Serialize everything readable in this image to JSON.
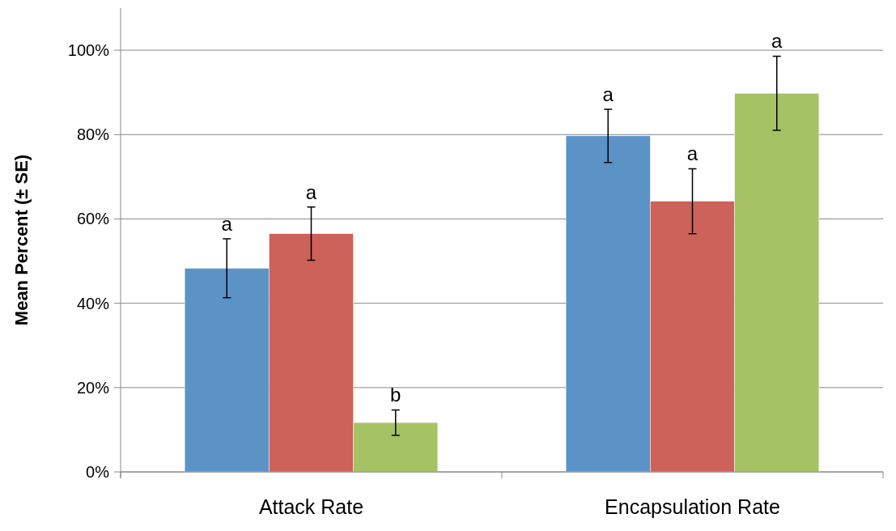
{
  "chart_data": {
    "type": "bar",
    "ylabel": "Mean Percent (± SE)",
    "categories": [
      "Attack Rate",
      "Encapsulation Rate"
    ],
    "series": [
      {
        "color": "#5b93c7",
        "values": [
          48.3,
          79.7
        ],
        "errors": [
          7,
          6.3
        ]
      },
      {
        "color": "#cc625a",
        "values": [
          56.5,
          64.2
        ],
        "errors": [
          6.3,
          7.7
        ]
      },
      {
        "color": "#a5c264",
        "values": [
          11.7,
          89.8
        ],
        "errors": [
          3,
          8.8
        ]
      }
    ],
    "ylim": [
      0,
      110
    ],
    "yticks": [
      {
        "value": 0,
        "label": "0%"
      },
      {
        "value": 20,
        "label": "20%"
      },
      {
        "value": 40,
        "label": "40%"
      },
      {
        "value": 60,
        "label": "60%"
      },
      {
        "value": 80,
        "label": "80%"
      },
      {
        "value": 100,
        "label": "100%"
      }
    ],
    "grid": "y",
    "annotations": [
      "a",
      "a",
      "b",
      "a",
      "a",
      "a"
    ]
  }
}
